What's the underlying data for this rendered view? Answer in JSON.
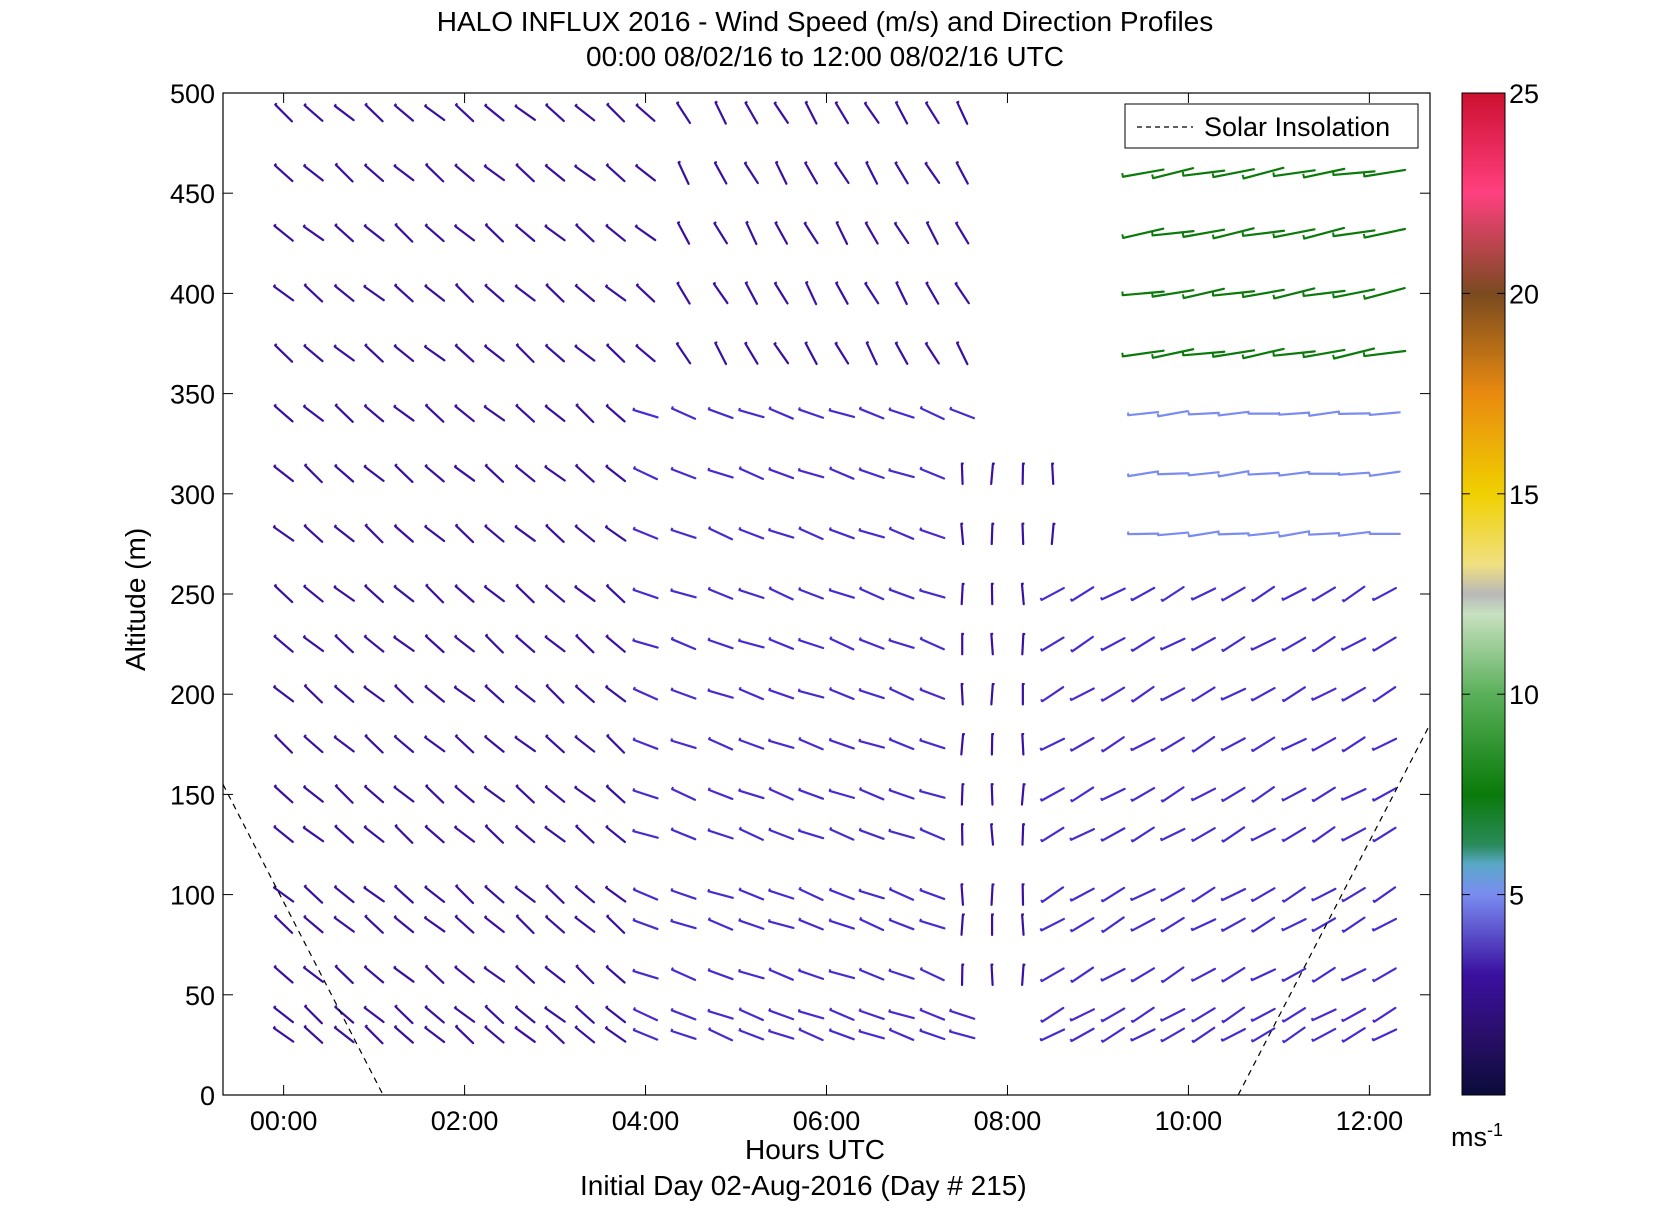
{
  "chart_data": {
    "type": "wind_barbs_profile",
    "title": "HALO INFLUX 2016 - Wind Speed (m/s) and Direction Profiles",
    "subtitle": "00:00 08/02/16 to 12:00 08/02/16  UTC",
    "xlabel": "Hours UTC",
    "ylabel": "Altitude (m)",
    "footer": "Initial Day 02-Aug-2016 (Day # 215)",
    "xlim": [
      -0.67,
      12.67
    ],
    "ylim": [
      0,
      500
    ],
    "x_ticks": [
      0,
      2,
      4,
      6,
      8,
      10,
      12
    ],
    "x_tick_labels": [
      "00:00",
      "02:00",
      "04:00",
      "06:00",
      "08:00",
      "10:00",
      "12:00"
    ],
    "y_ticks": [
      0,
      50,
      100,
      150,
      200,
      250,
      300,
      350,
      400,
      450,
      500
    ],
    "y_tick_labels": [
      "0",
      "50",
      "100",
      "150",
      "200",
      "250",
      "300",
      "350",
      "400",
      "450",
      "500"
    ],
    "colorbar": {
      "range": [
        0,
        25
      ],
      "ticks": [
        5,
        10,
        15,
        20,
        25
      ],
      "tick_labels": [
        "5",
        "10",
        "15",
        "20",
        "25"
      ],
      "unit_base": "ms",
      "unit_exp": "-1"
    },
    "legend": {
      "entries": [
        "Solar Insolation"
      ],
      "style": "dashed",
      "placement": "top-right"
    },
    "solar_insolation": [
      {
        "x": -0.67,
        "y": 155
      },
      {
        "x": 1.1,
        "y": 0
      },
      {
        "x": 10.55,
        "y": 0
      },
      {
        "x": 12.67,
        "y": 185
      }
    ],
    "time_steps": [
      0.0,
      0.33,
      0.67,
      1.0,
      1.33,
      1.67,
      2.0,
      2.33,
      2.67,
      3.0,
      3.33,
      3.67,
      4.0,
      4.42,
      4.83,
      5.17,
      5.5,
      5.83,
      6.17,
      6.5,
      6.83,
      7.17,
      7.5,
      7.83,
      8.17,
      8.5,
      8.83,
      9.17,
      9.5,
      9.83,
      10.17,
      10.5,
      10.83,
      11.17,
      11.5,
      11.83,
      12.17
    ],
    "altitudes": [
      30,
      40,
      60,
      85,
      100,
      130,
      150,
      175,
      200,
      225,
      250,
      280,
      310,
      340,
      370,
      400,
      430,
      460,
      490
    ],
    "wind_regimes": [
      {
        "t_start": 0.0,
        "t_end": 4.0,
        "alt_min": 0,
        "alt_max": 500,
        "dir_deg": 310,
        "speed_ms": 3.0
      },
      {
        "t_start": 4.0,
        "t_end": 7.5,
        "alt_min": 0,
        "alt_max": 360,
        "dir_deg": 290,
        "speed_ms": 3.5
      },
      {
        "t_start": 4.4,
        "t_end": 7.5,
        "alt_min": 360,
        "alt_max": 500,
        "dir_deg": 330,
        "speed_ms": 3.0
      },
      {
        "t_start": 7.5,
        "t_end": 8.5,
        "alt_min": 60,
        "alt_max": 320,
        "dir_deg": 360,
        "speed_ms": 2.0
      },
      {
        "t_start": 8.5,
        "t_end": 12.3,
        "alt_min": 0,
        "alt_max": 260,
        "dir_deg": 240,
        "speed_ms": 3.5
      },
      {
        "t_start": 9.3,
        "t_end": 12.3,
        "alt_min": 260,
        "alt_max": 340,
        "dir_deg": 265,
        "speed_ms": 5.0
      },
      {
        "t_start": 9.3,
        "t_end": 12.3,
        "alt_min": 360,
        "alt_max": 470,
        "dir_deg": 260,
        "speed_ms": 8.5
      }
    ]
  },
  "palette": [
    "#0b0b3a",
    "#3a0f7a",
    "#6a2ec8",
    "#7a8cf0",
    "#5aa8c8",
    "#0a7a0a",
    "#7ac87a",
    "#b8b8b8",
    "#f0d000",
    "#e88a10",
    "#7a4a20",
    "#ff4080",
    "#cc1030"
  ]
}
